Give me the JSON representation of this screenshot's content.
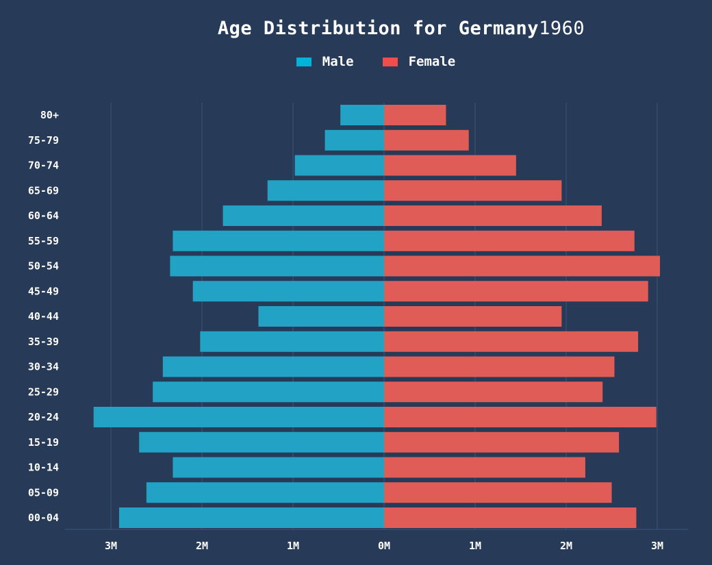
{
  "chart_data": {
    "type": "bar",
    "orientation": "horizontal-population-pyramid",
    "title": "Age Distribution for Germany",
    "year": "1960",
    "categories": [
      "80+",
      "75-79",
      "70-74",
      "65-69",
      "60-64",
      "55-59",
      "50-54",
      "45-49",
      "40-44",
      "35-39",
      "30-34",
      "25-29",
      "20-24",
      "15-19",
      "10-14",
      "05-09",
      "00-04"
    ],
    "series": [
      {
        "name": "Male",
        "color": "#22a2c4",
        "values": [
          480000,
          650000,
          980000,
          1280000,
          1770000,
          2320000,
          2350000,
          2100000,
          1380000,
          2020000,
          2430000,
          2540000,
          3190000,
          2690000,
          2320000,
          2610000,
          2910000
        ]
      },
      {
        "name": "Female",
        "color": "#e05d57",
        "values": [
          680000,
          930000,
          1450000,
          1950000,
          2390000,
          2750000,
          3030000,
          2900000,
          1950000,
          2790000,
          2530000,
          2400000,
          2990000,
          2580000,
          2210000,
          2500000,
          2770000
        ]
      }
    ],
    "legend": {
      "position": "top-center"
    },
    "legend_swatch_color_male": "#00b3d9",
    "legend_swatch_color_female": "#f24d4d",
    "xlim": [
      -3300000,
      3300000
    ],
    "xticks": [
      -3000000,
      -2000000,
      -1000000,
      0,
      1000000,
      2000000,
      3000000
    ],
    "xtick_labels": [
      "3M",
      "2M",
      "1M",
      "0M",
      "1M",
      "2M",
      "3M"
    ],
    "grid": true
  }
}
